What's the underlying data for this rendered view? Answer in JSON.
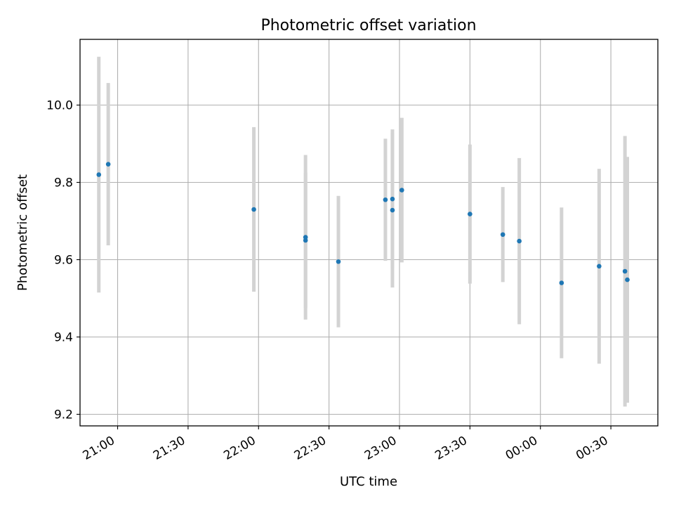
{
  "chart_data": {
    "type": "scatter",
    "title": "Photometric offset variation",
    "xlabel": "UTC time",
    "ylabel": "Photometric offset",
    "grid": true,
    "colors": {
      "marker": "#1f77b4",
      "errorbar": "#d3d3d3",
      "grid": "#b0b0b0"
    },
    "xlim": [
      "20:44",
      "00:50"
    ],
    "ylim": [
      9.17,
      10.17
    ],
    "x_ticks": [
      "21:00",
      "21:30",
      "22:00",
      "22:30",
      "23:00",
      "23:30",
      "00:00",
      "00:30"
    ],
    "y_ticks": [
      "9.2",
      "9.4",
      "9.6",
      "9.8",
      "10.0"
    ],
    "points": [
      {
        "x": "20:52",
        "y": 9.82,
        "err": 0.305
      },
      {
        "x": "20:56",
        "y": 9.847,
        "err": 0.21
      },
      {
        "x": "21:58",
        "y": 9.73,
        "err": 0.213
      },
      {
        "x": "22:20",
        "y": 9.658,
        "err": 0.213
      },
      {
        "x": "22:20",
        "y": 9.65,
        "err": 0.175
      },
      {
        "x": "22:34",
        "y": 9.595,
        "err": 0.17
      },
      {
        "x": "22:54",
        "y": 9.755,
        "err": 0.158
      },
      {
        "x": "22:57",
        "y": 9.757,
        "err": 0.18
      },
      {
        "x": "22:57",
        "y": 9.728,
        "err": 0.2
      },
      {
        "x": "23:01",
        "y": 9.78,
        "err": 0.187
      },
      {
        "x": "23:30",
        "y": 9.718,
        "err": 0.18
      },
      {
        "x": "23:44",
        "y": 9.665,
        "err": 0.123
      },
      {
        "x": "23:51",
        "y": 9.648,
        "err": 0.215
      },
      {
        "x": "00:09",
        "y": 9.54,
        "err": 0.195
      },
      {
        "x": "00:25",
        "y": 9.583,
        "err": 0.252
      },
      {
        "x": "00:36",
        "y": 9.57,
        "err": 0.35
      },
      {
        "x": "00:37",
        "y": 9.548,
        "err": 0.318
      }
    ]
  }
}
